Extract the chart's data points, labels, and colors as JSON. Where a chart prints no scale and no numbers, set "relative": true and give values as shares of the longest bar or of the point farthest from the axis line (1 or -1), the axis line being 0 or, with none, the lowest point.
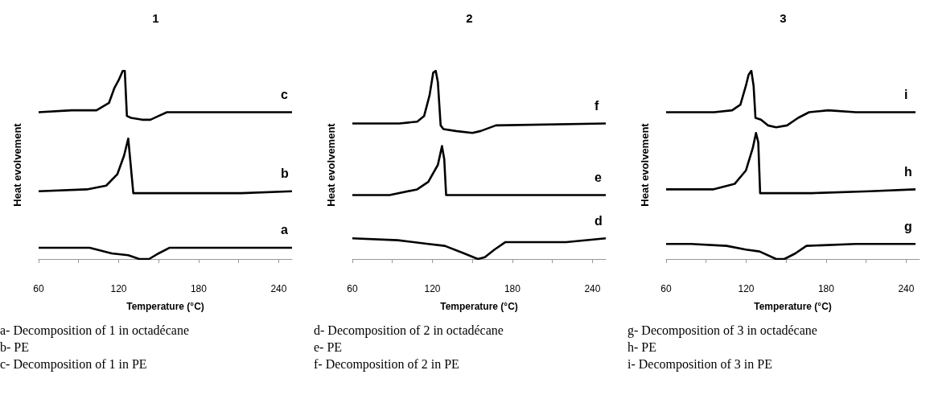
{
  "chart_data": [
    {
      "type": "line",
      "title": "1",
      "xlabel": "Temperature (°C)",
      "ylabel": "Heat evolvement",
      "relative": true,
      "tick_labels": "x",
      "marker": "none",
      "grid": false,
      "xlim": [
        60,
        250
      ],
      "xticks": [
        60,
        {
          "value": 90,
          "label": null
        },
        120,
        {
          "value": 150,
          "label": null
        },
        180,
        {
          "value": 210,
          "label": null
        },
        240
      ],
      "series": [
        {
          "name": "c",
          "color": "#000000",
          "x": [
            60,
            84.8,
            103.4,
            112.8,
            116.9,
            120,
            123.1,
            124.6,
            126.2,
            129.3,
            137.6,
            143.8,
            150,
            156.2,
            176.9,
            250
          ],
          "values": [
            0.78,
            0.79,
            0.79,
            0.83,
            0.91,
            0.95,
            1.0,
            1.0,
            0.76,
            0.75,
            0.74,
            0.74,
            0.76,
            0.78,
            0.78,
            0.78
          ]
        },
        {
          "name": "b",
          "color": "#000000",
          "x": [
            60,
            96.2,
            110.7,
            119,
            124.1,
            127.2,
            131,
            133.4,
            212,
            250
          ],
          "values": [
            0.36,
            0.37,
            0.39,
            0.45,
            0.55,
            0.64,
            0.35,
            0.35,
            0.35,
            0.36
          ]
        },
        {
          "name": "a",
          "color": "#000000",
          "x": [
            60,
            98.3,
            114.8,
            127.2,
            135.5,
            142.8,
            150,
            158.3,
            221.4,
            250
          ],
          "values": [
            0.06,
            0.06,
            0.03,
            0.02,
            0,
            0,
            0.03,
            0.06,
            0.06,
            0.06
          ]
        }
      ],
      "annotations": [
        "a- Decomposition of 1 in octadécane",
        "b- PE",
        "c- Decomposition of 1 in PE"
      ]
    },
    {
      "type": "line",
      "title": "2",
      "xlabel": "Temperature (°C)",
      "ylabel": "Heat evolvement",
      "relative": true,
      "tick_labels": "x",
      "marker": "none",
      "grid": false,
      "xlim": [
        60,
        250
      ],
      "xticks": [
        60,
        {
          "value": 90,
          "label": null
        },
        120,
        {
          "value": 150,
          "label": null
        },
        180,
        {
          "value": 210,
          "label": null
        },
        240
      ],
      "series": [
        {
          "name": "f",
          "color": "#000000",
          "x": [
            60,
            95.2,
            108.6,
            113.8,
            117.9,
            120.6,
            122.5,
            124.1,
            126.2,
            128.3,
            137.6,
            150,
            156.2,
            167.6,
            250
          ],
          "values": [
            0.72,
            0.72,
            0.73,
            0.76,
            0.87,
            0.99,
            1.0,
            0.94,
            0.71,
            0.69,
            0.68,
            0.67,
            0.68,
            0.71,
            0.72
          ]
        },
        {
          "name": "e",
          "color": "#000000",
          "x": [
            60,
            87.9,
            108.6,
            116.9,
            124.1,
            127.2,
            128.9,
            130.3,
            174.8,
            250
          ],
          "values": [
            0.34,
            0.34,
            0.37,
            0.41,
            0.5,
            0.6,
            0.53,
            0.34,
            0.34,
            0.34
          ]
        },
        {
          "name": "d",
          "color": "#000000",
          "x": [
            60,
            94.1,
            116.9,
            129.3,
            143.8,
            154.1,
            159.3,
            166.6,
            174.8,
            220.3,
            250
          ],
          "values": [
            0.11,
            0.1,
            0.08,
            0.07,
            0.03,
            0,
            0.01,
            0.05,
            0.09,
            0.09,
            0.11
          ]
        }
      ],
      "annotations": [
        "d- Decomposition of 2 in octadécane",
        "e- PE",
        "f- Decomposition of 2 in PE"
      ]
    },
    {
      "type": "line",
      "title": "3",
      "xlabel": "Temperature (°C)",
      "ylabel": "Heat evolvement",
      "relative": true,
      "tick_labels": "x",
      "marker": "none",
      "grid": false,
      "xlim": [
        60,
        250
      ],
      "xticks": [
        60,
        {
          "value": 90,
          "label": null
        },
        120,
        {
          "value": 150,
          "label": null
        },
        180,
        {
          "value": 210,
          "label": null
        },
        240
      ],
      "series": [
        {
          "name": "i",
          "color": "#000000",
          "x": [
            60,
            96.1,
            109.5,
            115.7,
            119.8,
            121.9,
            123.9,
            125.6,
            127,
            131.1,
            136.3,
            142.5,
            150.7,
            159,
            167.2,
            181.6,
            202.3,
            247
          ],
          "values": [
            0.78,
            0.78,
            0.79,
            0.82,
            0.92,
            0.98,
            1.0,
            0.92,
            0.75,
            0.74,
            0.71,
            0.7,
            0.71,
            0.75,
            0.78,
            0.79,
            0.78,
            0.78
          ]
        },
        {
          "name": "h",
          "color": "#000000",
          "x": [
            60,
            95.1,
            111.5,
            119.8,
            125,
            127.4,
            129.1,
            130.5,
            169.3,
            212.6,
            247
          ],
          "values": [
            0.37,
            0.37,
            0.4,
            0.47,
            0.59,
            0.67,
            0.62,
            0.35,
            0.35,
            0.36,
            0.37
          ]
        },
        {
          "name": "g",
          "color": "#000000",
          "x": [
            60,
            78.6,
            105.4,
            119.8,
            130.1,
            142.5,
            148.7,
            156.9,
            165.2,
            202.3,
            247
          ],
          "values": [
            0.08,
            0.08,
            0.07,
            0.05,
            0.04,
            0,
            0,
            0.03,
            0.07,
            0.08,
            0.08
          ]
        }
      ],
      "annotations": [
        "g- Decomposition of 3 in octadécane",
        "h- PE",
        "i- Decomposition of 3 in PE"
      ]
    }
  ]
}
